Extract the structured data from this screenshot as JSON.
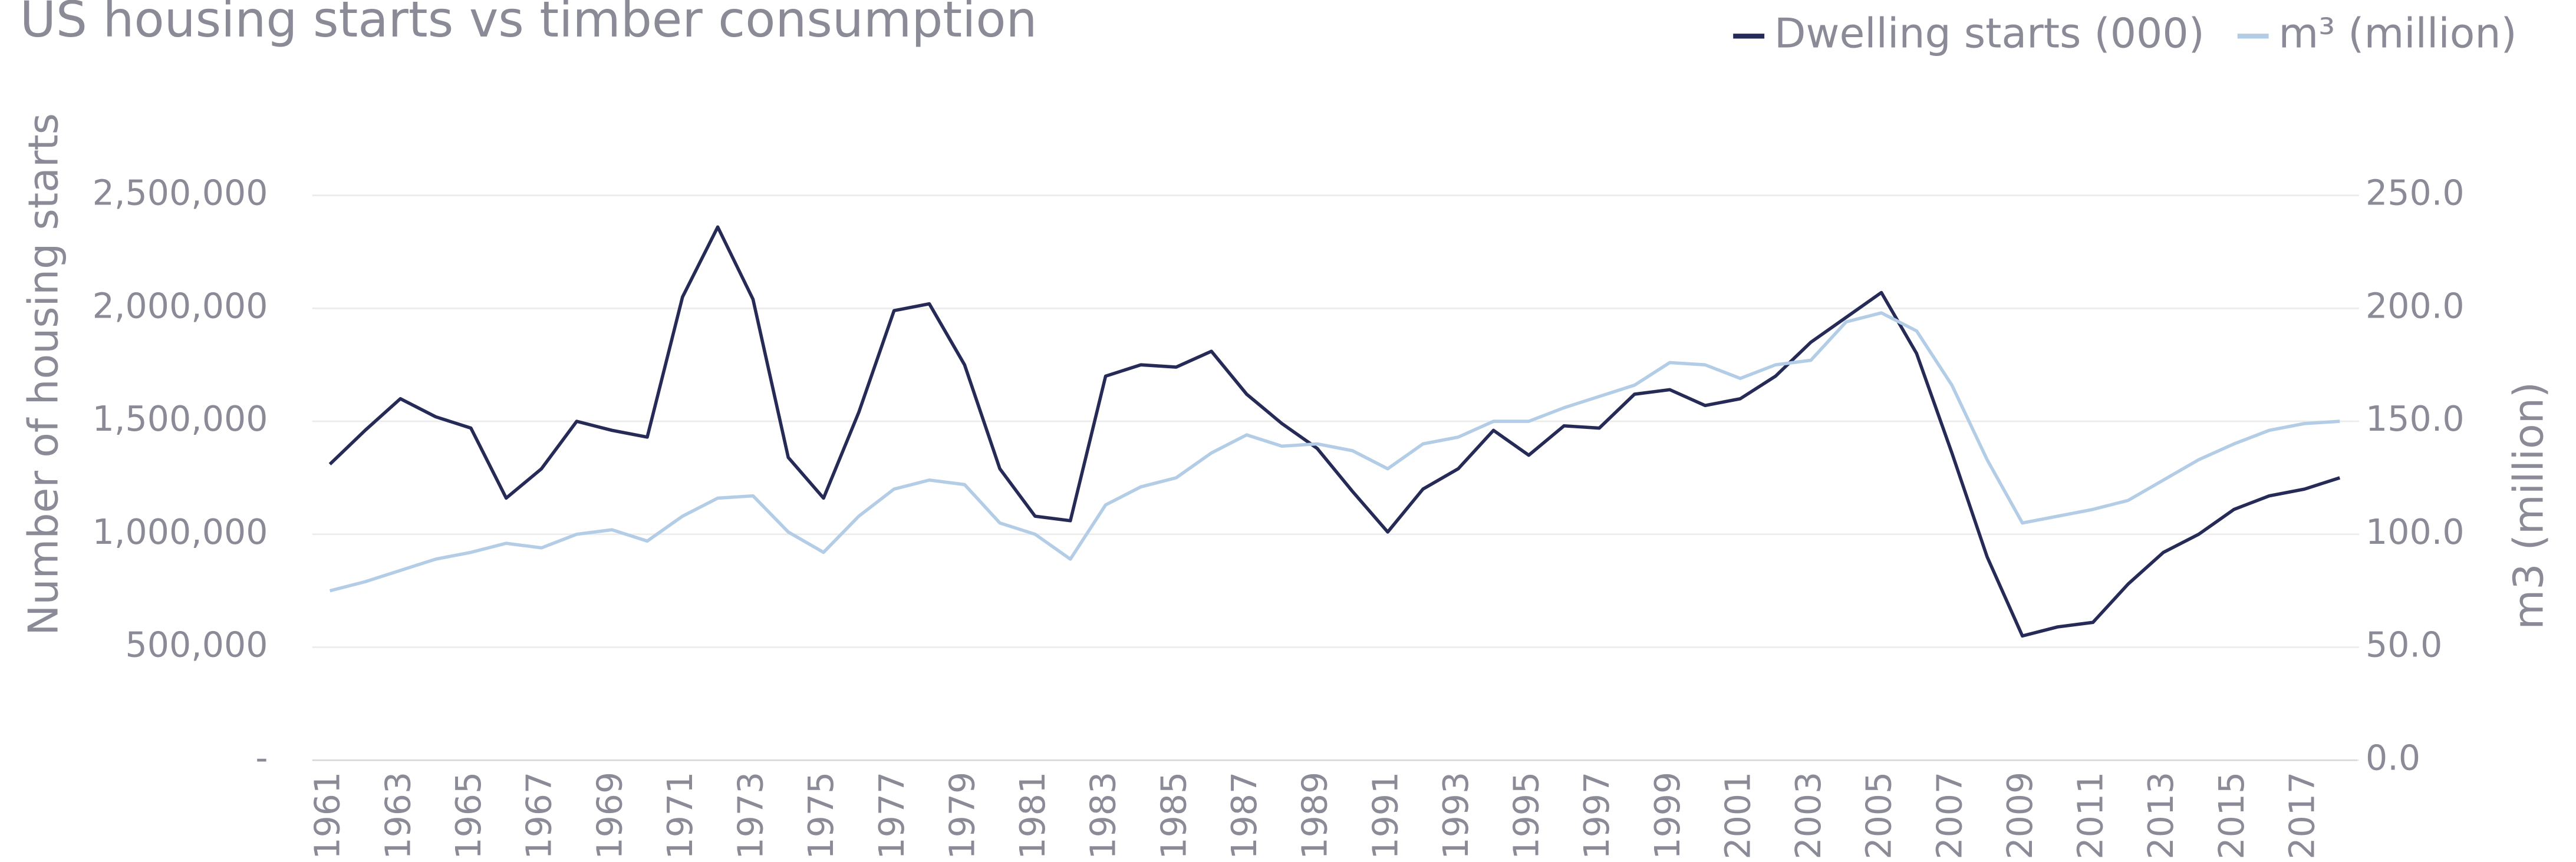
{
  "chart_data": {
    "type": "line",
    "title": "US housing starts vs timber consumption",
    "ylabel": "Number of housing starts",
    "y2label": "m3 (million)",
    "categories": [
      1961,
      null,
      1963,
      null,
      1965,
      null,
      1967,
      null,
      1969,
      null,
      1971,
      null,
      1973,
      null,
      1975,
      null,
      1977,
      null,
      1979,
      null,
      1981,
      null,
      1983,
      null,
      1985,
      null,
      1987,
      null,
      1989,
      null,
      1991,
      null,
      1993,
      null,
      1995,
      null,
      1997,
      null,
      1999,
      null,
      2001,
      null,
      2003,
      null,
      2005,
      null,
      2007,
      null,
      2009,
      null,
      2011,
      null,
      2013,
      null,
      2015,
      null,
      2017,
      null
    ],
    "series": [
      {
        "name": "Dwelling starts (000)",
        "color": "#262a56",
        "axis": "y",
        "values": [
          1310000,
          1460000,
          1600000,
          1520000,
          1470000,
          1160000,
          1290000,
          1500000,
          1460000,
          1430000,
          2050000,
          2360000,
          2040000,
          1340000,
          1160000,
          1540000,
          1990000,
          2020000,
          1750000,
          1290000,
          1080000,
          1060000,
          1700000,
          1750000,
          1740000,
          1810000,
          1620000,
          1490000,
          1380000,
          1190000,
          1010000,
          1200000,
          1290000,
          1460000,
          1350000,
          1480000,
          1470000,
          1620000,
          1640000,
          1570000,
          1600000,
          1700000,
          1850000,
          1960000,
          2070000,
          1800000,
          1360000,
          900000,
          550000,
          590000,
          610000,
          780000,
          920000,
          1000000,
          1110000,
          1170000,
          1200000,
          1250000
        ]
      },
      {
        "name": "m³ (million)",
        "color": "#b4cde6",
        "axis": "y2",
        "values": [
          75,
          79,
          84,
          89,
          92,
          96,
          94,
          100,
          102,
          97,
          108,
          116,
          117,
          101,
          92,
          108,
          120,
          124,
          122,
          105,
          100,
          89,
          113,
          121,
          125,
          136,
          144,
          139,
          140,
          137,
          129,
          140,
          143,
          150,
          150,
          156,
          161,
          166,
          176,
          175,
          169,
          175,
          177,
          194,
          198,
          190,
          166,
          133,
          105,
          108,
          111,
          115,
          124,
          133,
          140,
          146,
          149,
          150
        ]
      }
    ],
    "ylim": [
      0,
      2500000
    ],
    "yticks": [
      {
        "value": 0,
        "label": "-"
      },
      {
        "value": 500000,
        "label": "500,000"
      },
      {
        "value": 1000000,
        "label": "1,000,000"
      },
      {
        "value": 1500000,
        "label": "1,500,000"
      },
      {
        "value": 2000000,
        "label": "2,000,000"
      },
      {
        "value": 2500000,
        "label": "2,500,000"
      }
    ],
    "y2lim": [
      0,
      250
    ],
    "y2ticks": [
      {
        "value": 0,
        "label": "0.0"
      },
      {
        "value": 50,
        "label": "50.0"
      },
      {
        "value": 100,
        "label": "100.0"
      },
      {
        "value": 150,
        "label": "150.0"
      },
      {
        "value": 200,
        "label": "200.0"
      },
      {
        "value": 250,
        "label": "250.0"
      }
    ],
    "grid": true,
    "legend": "top-right"
  }
}
